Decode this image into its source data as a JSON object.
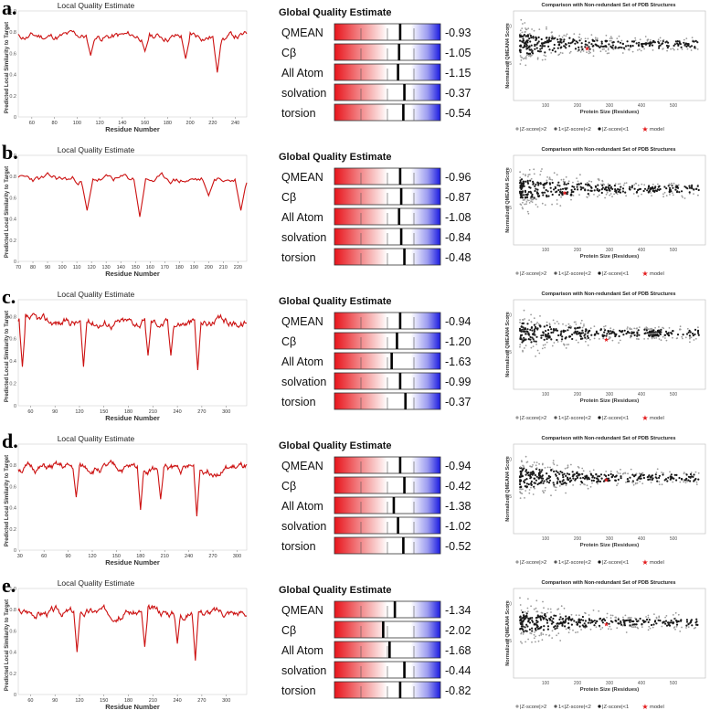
{
  "panels": [
    {
      "label": "a.",
      "local": {
        "title": "Local Quality Estimate",
        "xlabel": "Residue Number",
        "ylabel": "Predicted Local Similarity to Target",
        "xticks": [
          60,
          80,
          100,
          120,
          140,
          160,
          180,
          200,
          220,
          240
        ],
        "xlim": [
          48,
          250
        ],
        "yticks": [
          0,
          0.2,
          0.4,
          0.6,
          0.8,
          1.0
        ],
        "ylim": [
          0,
          1.0
        ],
        "ytick_labels": [
          "0",
          "0.2",
          "0.4",
          "0.6",
          "0.8",
          "1.0"
        ],
        "series_seed": 11,
        "dips": [
          [
            112,
            0.58
          ],
          [
            160,
            0.62
          ],
          [
            196,
            0.55
          ],
          [
            224,
            0.42
          ]
        ],
        "base": 0.76
      },
      "global": {
        "title": "Global Quality Estimate",
        "rows": [
          {
            "name": "QMEAN",
            "value": "-0.93",
            "pos": 0.62
          },
          {
            "name": "Cβ",
            "value": "-1.05",
            "pos": 0.61
          },
          {
            "name": "All Atom",
            "value": "-1.15",
            "pos": 0.6
          },
          {
            "name": "solvation",
            "value": "-0.37",
            "pos": 0.66
          },
          {
            "name": "torsion",
            "value": "-0.54",
            "pos": 0.65
          }
        ]
      },
      "comparison": {
        "title": "Comparison with Non-redundant Set of PDB Structures",
        "xlabel": "Protein Size (Residues)",
        "ylabel": "Normalized QMEAN4 Score",
        "xticks": [
          100,
          200,
          300,
          400,
          500
        ],
        "xlim": [
          0,
          600
        ],
        "yticks": [
          0.5,
          1.0
        ],
        "ylim": [
          0,
          1.2
        ],
        "model": [
          230,
          0.7
        ],
        "legend": [
          "|Z-score|>2",
          "1<|Z-score|<2",
          "|Z-score|<1",
          "model"
        ]
      }
    },
    {
      "label": "b.",
      "local": {
        "title": "Local Quality Estimate",
        "xlabel": "Residue Number",
        "ylabel": "Predicted Local Similarity to Target",
        "xticks": [
          70,
          80,
          90,
          100,
          110,
          120,
          130,
          140,
          150,
          160,
          170,
          180,
          190,
          200,
          210,
          220
        ],
        "xlim": [
          70,
          226
        ],
        "yticks": [
          0,
          0.2,
          0.4,
          0.6,
          0.8,
          1.0
        ],
        "ylim": [
          0,
          1.0
        ],
        "ytick_labels": [
          "0",
          "0.2",
          "0.4",
          "0.6",
          "0.8",
          "1.0"
        ],
        "series_seed": 23,
        "dips": [
          [
            117,
            0.48
          ],
          [
            153,
            0.42
          ],
          [
            200,
            0.62
          ],
          [
            222,
            0.48
          ]
        ],
        "base": 0.77
      },
      "global": {
        "title": "Global Quality Estimate",
        "rows": [
          {
            "name": "QMEAN",
            "value": "-0.96",
            "pos": 0.62
          },
          {
            "name": "Cβ",
            "value": "-0.87",
            "pos": 0.63
          },
          {
            "name": "All Atom",
            "value": "-1.08",
            "pos": 0.61
          },
          {
            "name": "solvation",
            "value": "-0.84",
            "pos": 0.63
          },
          {
            "name": "torsion",
            "value": "-0.48",
            "pos": 0.66
          }
        ]
      },
      "comparison": {
        "title": "Comparison with Non-redundant Set of PDB Structures",
        "xlabel": "Protein Size (Residues)",
        "ylabel": "Normalized QMEAN4 Score",
        "xticks": [
          100,
          200,
          300,
          400,
          500
        ],
        "xlim": [
          0,
          600
        ],
        "yticks": [
          0.5,
          1.0
        ],
        "ylim": [
          0,
          1.2
        ],
        "model": [
          160,
          0.7
        ],
        "legend": [
          "|Z-score|>2",
          "1<|Z-score|<2",
          "|Z-score|<1",
          "model"
        ]
      }
    },
    {
      "label": "c.",
      "local": {
        "title": "Local Quality Estimate",
        "xlabel": "Residue Number",
        "ylabel": "Predicted Local Similarity to Target",
        "xticks": [
          60,
          90,
          120,
          150,
          180,
          210,
          240,
          270,
          300
        ],
        "xlim": [
          45,
          325
        ],
        "yticks": [
          0,
          0.2,
          0.4,
          0.6,
          0.8
        ],
        "ylim": [
          0,
          0.95
        ],
        "ytick_labels": [
          "0",
          "0.2",
          "0.4",
          "0.6",
          "0.8"
        ],
        "series_seed": 37,
        "dips": [
          [
            50,
            0.35
          ],
          [
            125,
            0.35
          ],
          [
            204,
            0.45
          ],
          [
            232,
            0.45
          ],
          [
            265,
            0.32
          ]
        ],
        "base": 0.75
      },
      "global": {
        "title": "Global Quality Estimate",
        "rows": [
          {
            "name": "QMEAN",
            "value": "-0.94",
            "pos": 0.62
          },
          {
            "name": "Cβ",
            "value": "-1.20",
            "pos": 0.59
          },
          {
            "name": "All Atom",
            "value": "-1.63",
            "pos": 0.54
          },
          {
            "name": "solvation",
            "value": "-0.99",
            "pos": 0.62
          },
          {
            "name": "torsion",
            "value": "-0.37",
            "pos": 0.67
          }
        ]
      },
      "comparison": {
        "title": "Comparison with Non-redundant Set of PDB Structures",
        "xlabel": "Protein Size (Residues)",
        "ylabel": "Normalized QMEAN4 Score",
        "xticks": [
          100,
          200,
          300,
          400,
          500
        ],
        "xlim": [
          0,
          600
        ],
        "yticks": [
          0.5,
          1.0
        ],
        "ylim": [
          0,
          1.2
        ],
        "model": [
          290,
          0.67
        ],
        "legend": [
          "|Z-score|>2",
          "1<|Z-score|<2",
          "|Z-score|<1",
          "model"
        ]
      }
    },
    {
      "label": "d.",
      "local": {
        "title": "Local Quality Estimate",
        "xlabel": "Residue Number",
        "ylabel": "Predicted Local Similarity to Target",
        "xticks": [
          30,
          60,
          90,
          120,
          150,
          180,
          210,
          240,
          270,
          300
        ],
        "xlim": [
          28,
          312
        ],
        "yticks": [
          0,
          0.2,
          0.4,
          0.6,
          0.8
        ],
        "ylim": [
          0,
          1.0
        ],
        "ytick_labels": [
          "0",
          "0.2",
          "0.4",
          "0.6",
          "0.8"
        ],
        "series_seed": 51,
        "dips": [
          [
            100,
            0.5
          ],
          [
            180,
            0.38
          ],
          [
            205,
            0.48
          ],
          [
            250,
            0.32
          ]
        ],
        "base": 0.77
      },
      "global": {
        "title": "Global Quality Estimate",
        "rows": [
          {
            "name": "QMEAN",
            "value": "-0.94",
            "pos": 0.62
          },
          {
            "name": "Cβ",
            "value": "-0.42",
            "pos": 0.66
          },
          {
            "name": "All Atom",
            "value": "-1.38",
            "pos": 0.56
          },
          {
            "name": "solvation",
            "value": "-1.02",
            "pos": 0.6
          },
          {
            "name": "torsion",
            "value": "-0.52",
            "pos": 0.65
          }
        ]
      },
      "comparison": {
        "title": "Comparison with Non-redundant Set of PDB Structures",
        "xlabel": "Protein Size (Residues)",
        "ylabel": "Normalized QMEAN4 Score",
        "xticks": [
          100,
          200,
          300,
          400,
          500
        ],
        "xlim": [
          0,
          600
        ],
        "yticks": [
          0.5,
          1.0
        ],
        "ylim": [
          0,
          1.2
        ],
        "model": [
          290,
          0.72
        ],
        "legend": [
          "|Z-score|>2",
          "1<|Z-score|<2",
          "|Z-score|<1",
          "model"
        ]
      }
    },
    {
      "label": "e.",
      "local": {
        "title": "Local Quality Estimate",
        "xlabel": "Residue Number",
        "ylabel": "Predicted Local Similarity to Target",
        "xticks": [
          60,
          90,
          120,
          150,
          180,
          210,
          240,
          270,
          300
        ],
        "xlim": [
          45,
          325
        ],
        "yticks": [
          0,
          0.2,
          0.4,
          0.6,
          0.8,
          1.0
        ],
        "ylim": [
          0,
          1.0
        ],
        "ytick_labels": [
          "0",
          "0.2",
          "0.4",
          "0.6",
          "0.8",
          "1.0"
        ],
        "series_seed": 67,
        "dips": [
          [
            117,
            0.4
          ],
          [
            200,
            0.45
          ],
          [
            240,
            0.48
          ],
          [
            262,
            0.32
          ]
        ],
        "base": 0.78
      },
      "global": {
        "title": "Global Quality Estimate",
        "rows": [
          {
            "name": "QMEAN",
            "value": "-1.34",
            "pos": 0.57
          },
          {
            "name": "Cβ",
            "value": "-2.02",
            "pos": 0.46
          },
          {
            "name": "All Atom",
            "value": "-1.68",
            "pos": 0.52
          },
          {
            "name": "solvation",
            "value": "-0.44",
            "pos": 0.66
          },
          {
            "name": "torsion",
            "value": "-0.82",
            "pos": 0.62
          }
        ]
      },
      "comparison": {
        "title": "Comparison with Non-redundant Set of PDB Structures",
        "xlabel": "Protein Size (Residues)",
        "ylabel": "Normalized QMEAN4 Score",
        "xticks": [
          100,
          200,
          300,
          400,
          500
        ],
        "xlim": [
          0,
          600
        ],
        "yticks": [
          0.5,
          1.0
        ],
        "ylim": [
          0,
          1.2
        ],
        "model": [
          290,
          0.72
        ],
        "legend": [
          "|Z-score|>2",
          "1<|Z-score|<2",
          "|Z-score|<1",
          "model"
        ]
      }
    }
  ],
  "chart_data": [
    {
      "type": "line",
      "title": "Local Quality Estimate",
      "xlabel": "Residue Number",
      "ylabel": "Predicted Local Similarity to Target",
      "panel": "a.",
      "ylim": [
        0,
        1.0
      ]
    },
    {
      "type": "bar",
      "title": "Global Quality Estimate",
      "panel": "a.",
      "categories": [
        "QMEAN",
        "Cβ",
        "All Atom",
        "solvation",
        "torsion"
      ],
      "values": [
        -0.93,
        -1.05,
        -1.15,
        -0.37,
        -0.54
      ]
    },
    {
      "type": "scatter",
      "title": "Comparison with Non-redundant Set of PDB Structures",
      "panel": "a.",
      "xlabel": "Protein Size (Residues)",
      "ylabel": "Normalized QMEAN4 Score"
    },
    {
      "type": "line",
      "title": "Local Quality Estimate",
      "panel": "b.",
      "xlabel": "Residue Number",
      "ylabel": "Predicted Local Similarity to Target"
    },
    {
      "type": "bar",
      "title": "Global Quality Estimate",
      "panel": "b.",
      "categories": [
        "QMEAN",
        "Cβ",
        "All Atom",
        "solvation",
        "torsion"
      ],
      "values": [
        -0.96,
        -0.87,
        -1.08,
        -0.84,
        -0.48
      ]
    },
    {
      "type": "scatter",
      "title": "Comparison with Non-redundant Set of PDB Structures",
      "panel": "b."
    },
    {
      "type": "line",
      "title": "Local Quality Estimate",
      "panel": "c."
    },
    {
      "type": "bar",
      "title": "Global Quality Estimate",
      "panel": "c.",
      "categories": [
        "QMEAN",
        "Cβ",
        "All Atom",
        "solvation",
        "torsion"
      ],
      "values": [
        -0.94,
        -1.2,
        -1.63,
        -0.99,
        -0.37
      ]
    },
    {
      "type": "scatter",
      "title": "Comparison with Non-redundant Set of PDB Structures",
      "panel": "c."
    },
    {
      "type": "line",
      "title": "Local Quality Estimate",
      "panel": "d."
    },
    {
      "type": "bar",
      "title": "Global Quality Estimate",
      "panel": "d.",
      "categories": [
        "QMEAN",
        "Cβ",
        "All Atom",
        "solvation",
        "torsion"
      ],
      "values": [
        -0.94,
        -0.42,
        -1.38,
        -1.02,
        -0.52
      ]
    },
    {
      "type": "scatter",
      "title": "Comparison with Non-redundant Set of PDB Structures",
      "panel": "d."
    },
    {
      "type": "line",
      "title": "Local Quality Estimate",
      "panel": "e."
    },
    {
      "type": "bar",
      "title": "Global Quality Estimate",
      "panel": "e.",
      "categories": [
        "QMEAN",
        "Cβ",
        "All Atom",
        "solvation",
        "torsion"
      ],
      "values": [
        -1.34,
        -2.02,
        -1.68,
        -0.44,
        -0.82
      ]
    },
    {
      "type": "scatter",
      "title": "Comparison with Non-redundant Set of PDB Structures",
      "panel": "e."
    }
  ],
  "colors": {
    "line": "#cc1111",
    "bar_red": "#e8141b",
    "bar_blue": "#1a1ae0",
    "model_star": "#e31a1c",
    "scatter_dark": "#1a1a1a",
    "scatter_light": "#9a9a9a"
  }
}
